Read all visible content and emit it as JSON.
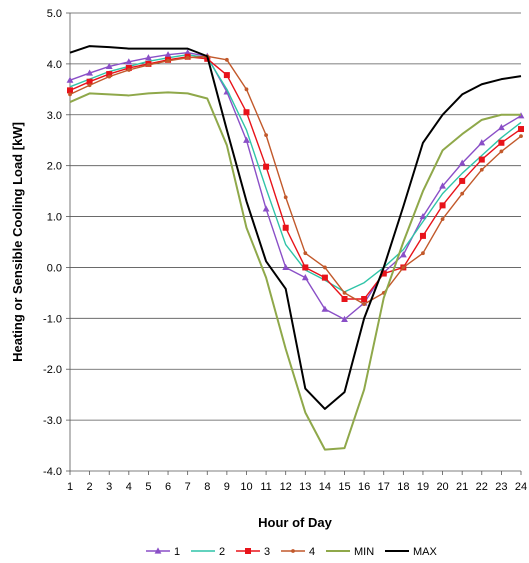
{
  "chart_data": {
    "type": "line",
    "title": "",
    "xlabel": "Hour of Day",
    "ylabel": "Heating or Sensible Cooling Load [kW]",
    "x": [
      1,
      2,
      3,
      4,
      5,
      6,
      7,
      8,
      9,
      10,
      11,
      12,
      13,
      14,
      15,
      16,
      17,
      18,
      19,
      20,
      21,
      22,
      23,
      24
    ],
    "xlim": [
      1,
      24
    ],
    "ylim": [
      -4.0,
      5.0
    ],
    "yticks": [
      "-4.0",
      "-3.0",
      "-2.0",
      "-1.0",
      "0.0",
      "1.0",
      "2.0",
      "3.0",
      "4.0",
      "5.0"
    ],
    "grid": "horizontal",
    "legend_position": "bottom",
    "series": [
      {
        "name": "1",
        "color": "#8a4fc7",
        "marker": "triangle",
        "values": [
          3.68,
          3.82,
          3.95,
          4.04,
          4.12,
          4.18,
          4.22,
          4.15,
          3.45,
          2.5,
          1.15,
          0.0,
          -0.2,
          -0.82,
          -1.02,
          -0.7,
          -0.1,
          0.25,
          1.0,
          1.6,
          2.05,
          2.45,
          2.75,
          2.98
        ]
      },
      {
        "name": "2",
        "color": "#2fc4a8",
        "marker": "none",
        "values": [
          3.55,
          3.7,
          3.85,
          3.95,
          4.05,
          4.12,
          4.18,
          4.12,
          3.5,
          2.7,
          1.55,
          0.45,
          -0.05,
          -0.25,
          -0.48,
          -0.3,
          0.0,
          0.35,
          0.9,
          1.45,
          1.85,
          2.2,
          2.55,
          2.85
        ]
      },
      {
        "name": "3",
        "color": "#e8131a",
        "marker": "square",
        "values": [
          3.48,
          3.65,
          3.8,
          3.92,
          4.0,
          4.08,
          4.14,
          4.1,
          3.78,
          3.05,
          1.98,
          0.78,
          0.0,
          -0.2,
          -0.62,
          -0.62,
          -0.12,
          0.0,
          0.62,
          1.22,
          1.7,
          2.12,
          2.45,
          2.72
        ]
      },
      {
        "name": "4",
        "color": "#c2592b",
        "marker": "dot",
        "values": [
          3.4,
          3.58,
          3.75,
          3.88,
          3.98,
          4.06,
          4.12,
          4.15,
          4.08,
          3.5,
          2.6,
          1.38,
          0.28,
          0.0,
          -0.5,
          -0.72,
          -0.5,
          0.0,
          0.28,
          0.95,
          1.45,
          1.92,
          2.28,
          2.58
        ]
      },
      {
        "name": "MIN",
        "color": "#8fa84a",
        "marker": "none",
        "values": [
          3.25,
          3.42,
          3.4,
          3.38,
          3.42,
          3.44,
          3.42,
          3.32,
          2.4,
          0.78,
          -0.2,
          -1.6,
          -2.85,
          -3.58,
          -3.55,
          -2.4,
          -0.6,
          0.5,
          1.5,
          2.3,
          2.62,
          2.9,
          3.0,
          3.0
        ]
      },
      {
        "name": "MAX",
        "color": "#000000",
        "marker": "none",
        "values": [
          4.22,
          4.35,
          4.33,
          4.3,
          4.3,
          4.3,
          4.3,
          4.15,
          2.7,
          1.3,
          0.12,
          -0.42,
          -2.38,
          -2.78,
          -2.45,
          -1.0,
          0.0,
          1.2,
          2.45,
          3.0,
          3.4,
          3.6,
          3.7,
          3.76
        ]
      }
    ]
  }
}
